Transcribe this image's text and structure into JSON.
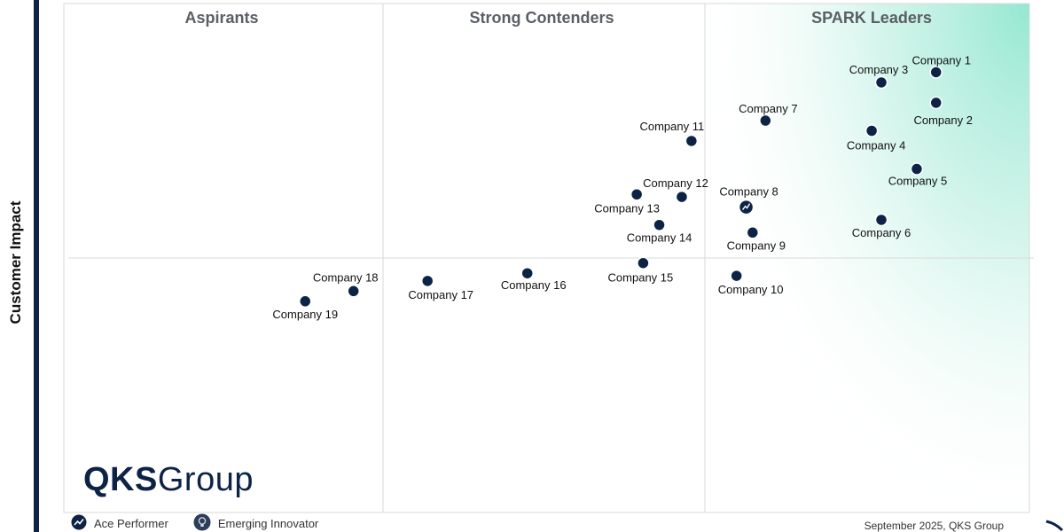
{
  "chart_data": {
    "type": "scatter",
    "title": "",
    "xlabel": "",
    "ylabel": "Customer Impact",
    "xlim": [
      0,
      3
    ],
    "ylim": [
      0,
      2
    ],
    "grid": false,
    "quadrants": [
      {
        "name": "Aspirants"
      },
      {
        "name": "Strong Contenders"
      },
      {
        "name": "SPARK Leaders"
      }
    ],
    "points": [
      {
        "label": "Company 1",
        "x": 2.71,
        "y": 1.73,
        "type": "standard"
      },
      {
        "label": "Company 2",
        "x": 2.71,
        "y": 1.61,
        "type": "standard"
      },
      {
        "label": "Company 3",
        "x": 2.54,
        "y": 1.69,
        "type": "standard"
      },
      {
        "label": "Company 4",
        "x": 2.51,
        "y": 1.5,
        "type": "standard"
      },
      {
        "label": "Company 5",
        "x": 2.65,
        "y": 1.35,
        "type": "standard"
      },
      {
        "label": "Company 6",
        "x": 2.54,
        "y": 1.15,
        "type": "standard"
      },
      {
        "label": "Company 7",
        "x": 2.18,
        "y": 1.54,
        "type": "standard"
      },
      {
        "label": "Company 8",
        "x": 2.12,
        "y": 1.2,
        "type": "ace"
      },
      {
        "label": "Company 9",
        "x": 2.14,
        "y": 1.1,
        "type": "standard"
      },
      {
        "label": "Company 10",
        "x": 2.09,
        "y": 0.93,
        "type": "standard"
      },
      {
        "label": "Company 11",
        "x": 1.95,
        "y": 1.46,
        "type": "standard"
      },
      {
        "label": "Company 12",
        "x": 1.92,
        "y": 1.24,
        "type": "standard"
      },
      {
        "label": "Company 13",
        "x": 1.78,
        "y": 1.25,
        "type": "standard"
      },
      {
        "label": "Company 14",
        "x": 1.85,
        "y": 1.13,
        "type": "standard"
      },
      {
        "label": "Company 15",
        "x": 1.8,
        "y": 0.98,
        "type": "standard"
      },
      {
        "label": "Company 16",
        "x": 1.44,
        "y": 0.94,
        "type": "standard"
      },
      {
        "label": "Company 17",
        "x": 1.13,
        "y": 0.91,
        "type": "standard"
      },
      {
        "label": "Company 18",
        "x": 0.9,
        "y": 0.87,
        "type": "standard"
      },
      {
        "label": "Company 19",
        "x": 0.75,
        "y": 0.83,
        "type": "standard"
      }
    ]
  },
  "brand": {
    "logo_bold": "QKS",
    "logo_light": "Group",
    "color": "#0d2346"
  },
  "legend": [
    {
      "label": "Ace Performer",
      "icon": "ace-performer-icon"
    },
    {
      "label": "Emerging Innovator",
      "icon": "emerging-innovator-icon"
    }
  ],
  "footer": {
    "date_text": "September 2025, QKS Group"
  },
  "colors": {
    "marker": "#0d2346",
    "leader_gradient": "#8fe6cf",
    "quadrant_label": "#5a5f66"
  }
}
